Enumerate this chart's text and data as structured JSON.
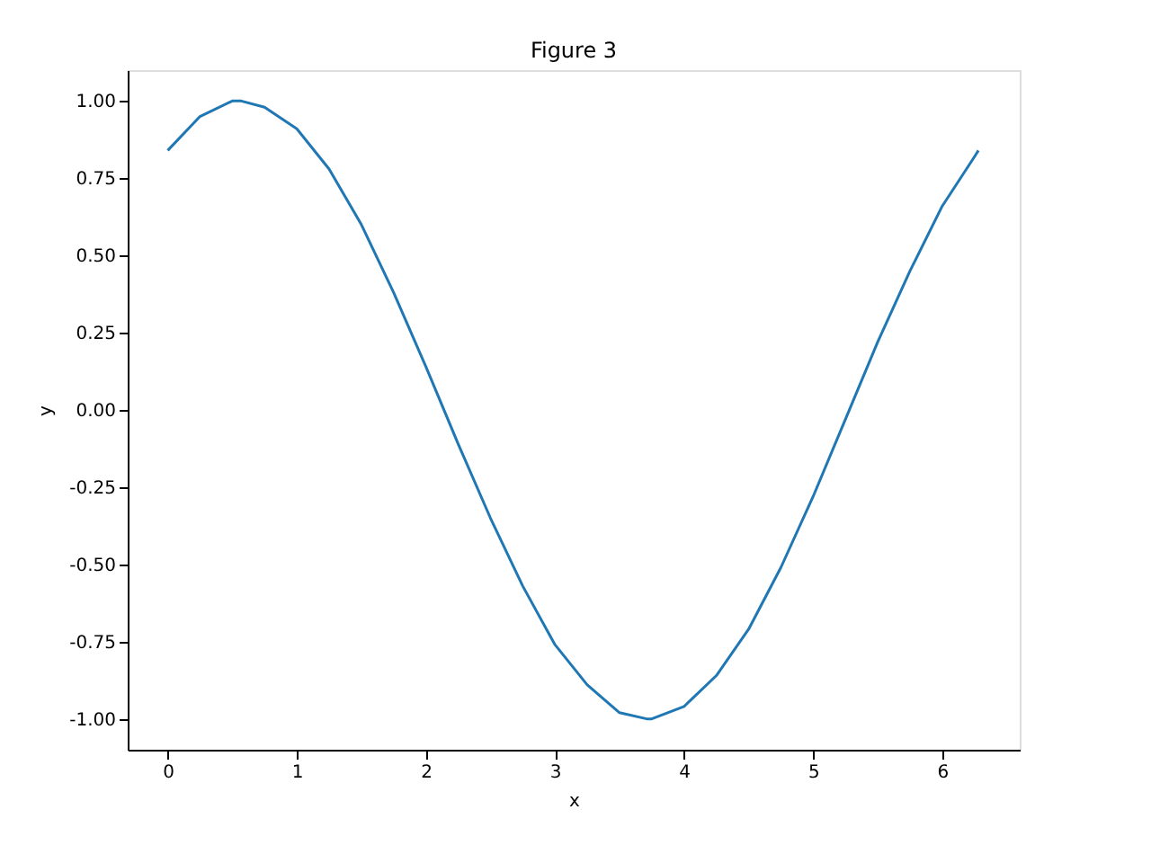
{
  "chart_data": {
    "type": "line",
    "title": "Figure 3",
    "xlabel": "x",
    "ylabel": "y",
    "x": [
      0,
      0.25,
      0.5,
      0.57,
      0.75,
      1.0,
      1.25,
      1.5,
      1.75,
      2.0,
      2.25,
      2.5,
      2.75,
      3.0,
      3.25,
      3.5,
      3.71,
      3.75,
      4.0,
      4.25,
      4.5,
      4.75,
      5.0,
      5.25,
      5.5,
      5.75,
      6.0,
      6.25,
      6.28
    ],
    "series": [
      {
        "color": "#1f77b4",
        "values": [
          0.84,
          0.95,
          1.0,
          1.0,
          0.98,
          0.91,
          0.78,
          0.6,
          0.38,
          0.14,
          -0.11,
          -0.35,
          -0.57,
          -0.76,
          -0.89,
          -0.98,
          -1.0,
          -1.0,
          -0.96,
          -0.86,
          -0.71,
          -0.51,
          -0.28,
          -0.03,
          0.22,
          0.45,
          0.66,
          0.82,
          0.84
        ]
      }
    ],
    "xlim": [
      -0.31,
      6.6
    ],
    "ylim": [
      -1.1,
      1.1
    ],
    "xticks": [
      0,
      1,
      2,
      3,
      4,
      5,
      6
    ],
    "yticks": [
      {
        "value": -1,
        "label": "-1.00"
      },
      {
        "value": -0.75,
        "label": "-0.75"
      },
      {
        "value": -0.5,
        "label": "-0.50"
      },
      {
        "value": -0.25,
        "label": "-0.25"
      },
      {
        "value": 0,
        "label": "0.00"
      },
      {
        "value": 0.25,
        "label": "0.25"
      },
      {
        "value": 0.5,
        "label": "0.50"
      },
      {
        "value": 0.75,
        "label": "0.75"
      },
      {
        "value": 1,
        "label": "1.00"
      }
    ],
    "grid": false
  }
}
